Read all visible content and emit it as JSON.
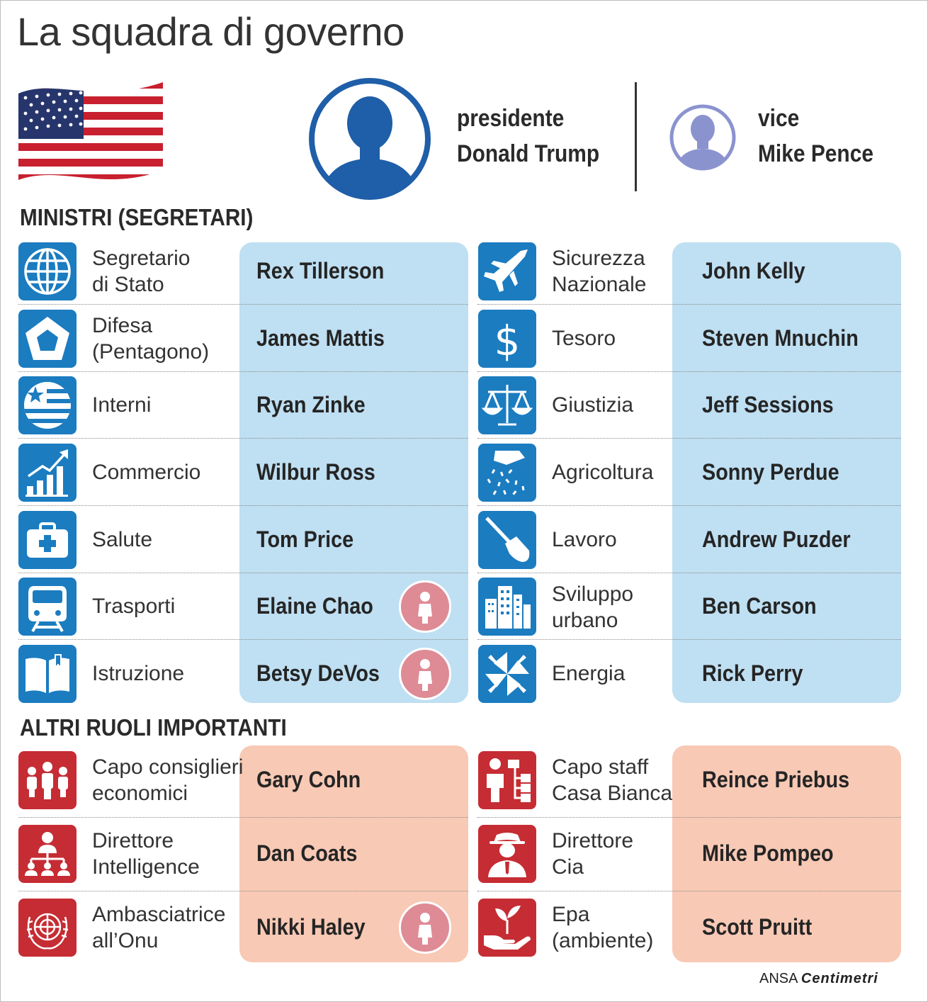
{
  "title": "La squadra di governo",
  "colors": {
    "ministry_icon": "#1b7cc0",
    "ministry_panel": "#bfdff2",
    "other_icon": "#c62c33",
    "other_panel": "#f8c9b5",
    "female_badge": "#de8b96",
    "avatar_president": "#1f5ea8",
    "avatar_vice": "#8b93cf"
  },
  "header": {
    "president": {
      "role": "presidente",
      "name": "Donald Trump",
      "icon": "person-silhouette-icon"
    },
    "vice": {
      "role": "vice",
      "name": "Mike Pence",
      "icon": "person-silhouette-icon"
    }
  },
  "sections": {
    "ministers": "MINISTRI (SEGRETARI)",
    "others": "ALTRI RUOLI IMPORTANTI"
  },
  "ministers_left": [
    {
      "label_1": "Segretario",
      "label_2": "di Stato",
      "name": "Rex Tillerson",
      "icon": "globe-icon",
      "female": false
    },
    {
      "label_1": "Difesa",
      "label_2": "(Pentagono)",
      "name": "James Mattis",
      "icon": "pentagon-icon",
      "female": false
    },
    {
      "label_1": "Interni",
      "label_2": "",
      "name": "Ryan Zinke",
      "icon": "flag-globe-icon",
      "female": false
    },
    {
      "label_1": "Commercio",
      "label_2": "",
      "name": "Wilbur Ross",
      "icon": "growth-chart-icon",
      "female": false
    },
    {
      "label_1": "Salute",
      "label_2": "",
      "name": "Tom Price",
      "icon": "medical-kit-icon",
      "female": false
    },
    {
      "label_1": "Trasporti",
      "label_2": "",
      "name": "Elaine Chao",
      "icon": "train-icon",
      "female": true
    },
    {
      "label_1": "Istruzione",
      "label_2": "",
      "name": "Betsy DeVos",
      "icon": "book-icon",
      "female": true
    }
  ],
  "ministers_right": [
    {
      "label_1": "Sicurezza",
      "label_2": "Nazionale",
      "name": "John Kelly",
      "icon": "jet-icon",
      "female": false
    },
    {
      "label_1": "Tesoro",
      "label_2": "",
      "name": "Steven Mnuchin",
      "icon": "dollar-icon",
      "female": false
    },
    {
      "label_1": "Giustizia",
      "label_2": "",
      "name": "Jeff Sessions",
      "icon": "scales-icon",
      "female": false
    },
    {
      "label_1": "Agricoltura",
      "label_2": "",
      "name": "Sonny Perdue",
      "icon": "sowing-hand-icon",
      "female": false
    },
    {
      "label_1": "Lavoro",
      "label_2": "",
      "name": "Andrew Puzder",
      "icon": "shovel-icon",
      "female": false
    },
    {
      "label_1": "Sviluppo",
      "label_2": "urbano",
      "name": "Ben Carson",
      "icon": "buildings-icon",
      "female": false
    },
    {
      "label_1": "Energia",
      "label_2": "",
      "name": "Rick Perry",
      "icon": "pinwheel-icon",
      "female": false
    }
  ],
  "others_left": [
    {
      "label_1": "Capo consiglieri",
      "label_2": "economici",
      "name": "Gary Cohn",
      "icon": "team-icon",
      "female": false
    },
    {
      "label_1": "Direttore",
      "label_2": "Intelligence",
      "name": "Dan Coats",
      "icon": "hierarchy-icon",
      "female": false
    },
    {
      "label_1": "Ambasciatrice",
      "label_2": "all’Onu",
      "name": "Nikki Haley",
      "icon": "un-emblem-icon",
      "female": true
    }
  ],
  "others_right": [
    {
      "label_1": "Capo staff",
      "label_2": "Casa Bianca",
      "name": "Reince Priebus",
      "icon": "org-chart-icon",
      "female": false
    },
    {
      "label_1": "Direttore",
      "label_2": "Cia",
      "name": "Mike Pompeo",
      "icon": "agent-icon",
      "female": false
    },
    {
      "label_1": "Epa",
      "label_2": "(ambiente)",
      "name": "Scott Pruitt",
      "icon": "plant-hand-icon",
      "female": false
    }
  ],
  "credit": {
    "agency": "ANSA",
    "brand": "Centimetri"
  }
}
